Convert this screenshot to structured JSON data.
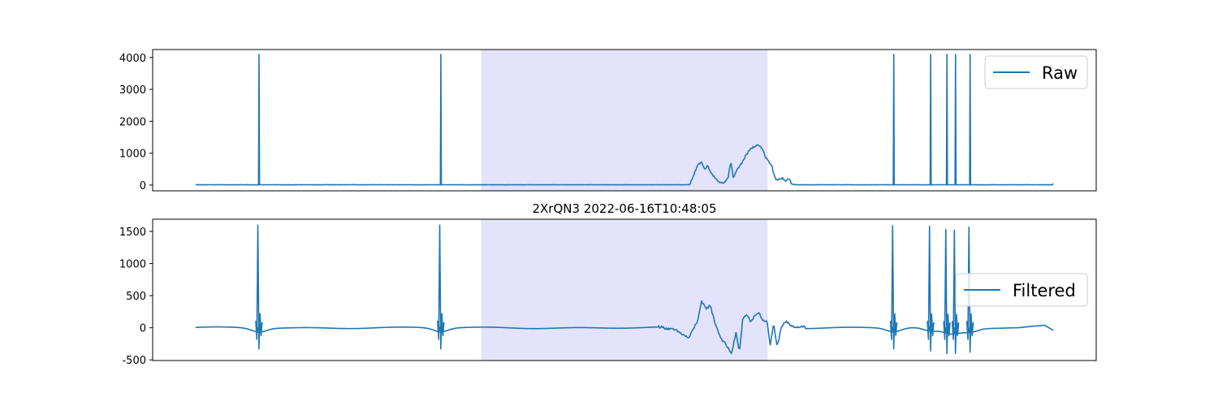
{
  "colors": {
    "line": "#1f77b4",
    "highlight": "#e3e3fc",
    "frame": "#000000",
    "legend_border": "#cccccc"
  },
  "chart_data": [
    {
      "type": "line",
      "name": "raw-panel",
      "title": "",
      "legend": "Raw",
      "legend_position": "top-right",
      "ylim": [
        -180,
        4250
      ],
      "yticks": [
        0,
        1000,
        2000,
        3000,
        4000
      ],
      "xlim": [
        -0.05,
        1.05
      ],
      "grid": false,
      "highlight_x": [
        0.333,
        0.667
      ],
      "baseline": 10,
      "spikes": [
        {
          "x": 0.074,
          "y": 4095
        },
        {
          "x": 0.286,
          "y": 4095
        },
        {
          "x": 0.814,
          "y": 4095
        },
        {
          "x": 0.857,
          "y": 4095
        },
        {
          "x": 0.876,
          "y": 4095
        },
        {
          "x": 0.886,
          "y": 4095
        },
        {
          "x": 0.903,
          "y": 4095
        }
      ],
      "segment": [
        [
          0.576,
          10
        ],
        [
          0.582,
          400
        ],
        [
          0.586,
          650
        ],
        [
          0.59,
          700
        ],
        [
          0.593,
          500
        ],
        [
          0.597,
          600
        ],
        [
          0.601,
          400
        ],
        [
          0.606,
          200
        ],
        [
          0.611,
          60
        ],
        [
          0.616,
          80
        ],
        [
          0.621,
          250
        ],
        [
          0.624,
          750
        ],
        [
          0.627,
          200
        ],
        [
          0.63,
          400
        ],
        [
          0.634,
          600
        ],
        [
          0.637,
          700
        ],
        [
          0.641,
          900
        ],
        [
          0.646,
          1100
        ],
        [
          0.651,
          1200
        ],
        [
          0.656,
          1250
        ],
        [
          0.661,
          1150
        ],
        [
          0.664,
          900
        ],
        [
          0.667,
          800
        ],
        [
          0.672,
          600
        ],
        [
          0.675,
          250
        ],
        [
          0.678,
          150
        ],
        [
          0.681,
          200
        ],
        [
          0.684,
          230
        ],
        [
          0.688,
          130
        ],
        [
          0.692,
          200
        ],
        [
          0.695,
          30
        ],
        [
          0.697,
          10
        ]
      ],
      "end_value": 50
    },
    {
      "type": "line",
      "name": "filtered-panel",
      "title": "2XrQN3 2022-06-16T10:48:05",
      "legend": "Filtered",
      "legend_position": "center-right",
      "ylim": [
        -510,
        1690
      ],
      "yticks": [
        -500,
        0,
        500,
        1000,
        1500
      ],
      "xlim": [
        -0.05,
        1.05
      ],
      "grid": false,
      "highlight_x": [
        0.333,
        0.667
      ],
      "spikes": [
        {
          "x": 0.074,
          "y": 1600,
          "y_min": -330
        },
        {
          "x": 0.286,
          "y": 1600,
          "y_min": -330
        },
        {
          "x": 0.814,
          "y": 1590,
          "y_min": -330
        },
        {
          "x": 0.857,
          "y": 1580,
          "y_min": -360
        },
        {
          "x": 0.876,
          "y": 1530,
          "y_min": -400
        },
        {
          "x": 0.886,
          "y": 1520,
          "y_min": -400
        },
        {
          "x": 0.903,
          "y": 1570,
          "y_min": -380
        }
      ],
      "segment": [
        [
          0.54,
          20
        ],
        [
          0.56,
          -40
        ],
        [
          0.575,
          -160
        ],
        [
          0.585,
          100
        ],
        [
          0.59,
          400
        ],
        [
          0.595,
          300
        ],
        [
          0.6,
          350
        ],
        [
          0.605,
          100
        ],
        [
          0.612,
          -150
        ],
        [
          0.62,
          -300
        ],
        [
          0.625,
          -400
        ],
        [
          0.63,
          -80
        ],
        [
          0.634,
          -380
        ],
        [
          0.638,
          150
        ],
        [
          0.643,
          200
        ],
        [
          0.648,
          80
        ],
        [
          0.652,
          200
        ],
        [
          0.657,
          230
        ],
        [
          0.662,
          100
        ],
        [
          0.666,
          120
        ],
        [
          0.67,
          -280
        ],
        [
          0.674,
          70
        ],
        [
          0.678,
          -300
        ],
        [
          0.683,
          0
        ],
        [
          0.688,
          100
        ],
        [
          0.693,
          50
        ],
        [
          0.7,
          10
        ],
        [
          0.71,
          20
        ]
      ]
    }
  ]
}
